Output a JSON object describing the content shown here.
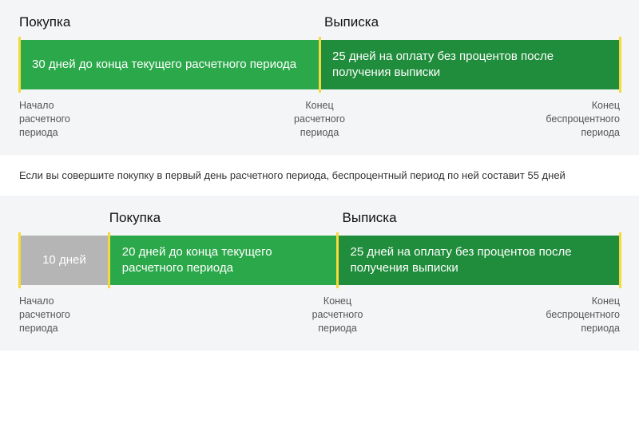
{
  "colors": {
    "green": "#2ba84a",
    "green_dark": "#1f8d3b",
    "grey": "#b5b5b5",
    "yellow": "#f8d93b",
    "panel_bg": "#f4f5f6",
    "text_dark": "#111",
    "text_mid": "#555"
  },
  "panel1": {
    "top_labels": {
      "purchase": "Покупка",
      "statement": "Выписка",
      "purchase_pos_pct": 0,
      "statement_pos_pct": 50
    },
    "segments": [
      {
        "width_pct": 50,
        "color": "#2ba84a",
        "text": "30 дней до конца текущего расчетного периода",
        "kind": "green"
      },
      {
        "width_pct": 50,
        "color": "#1f8d3b",
        "text": "25 дней на оплату без процентов после получения выписки",
        "kind": "green"
      }
    ],
    "ticks_pct": [
      0,
      50,
      100
    ],
    "bottom_labels": {
      "left": "Начало\nрасчетного\nпериода",
      "mid": "Конец\nрасчетного\nпериода",
      "mid_pos_pct": 50,
      "right": "Конец\nбеспроцентного\nпериода"
    }
  },
  "caption": "Если вы совершите покупку в первый день расчетного периода, беспроцентный период по ней составит 55 дней",
  "panel2": {
    "top_labels": {
      "purchase": "Покупка",
      "statement": "Выписка",
      "purchase_pos_pct": 15,
      "statement_pos_pct": 53
    },
    "segments": [
      {
        "width_pct": 15,
        "color": "#b5b5b5",
        "text": "10 дней",
        "kind": "grey"
      },
      {
        "width_pct": 38,
        "color": "#2ba84a",
        "text": "20 дней до конца текущего расчетного периода",
        "kind": "green"
      },
      {
        "width_pct": 47,
        "color": "#1f8d3b",
        "text": "25 дней на оплату без процентов после получения выписки",
        "kind": "green"
      }
    ],
    "ticks_pct": [
      0,
      15,
      53,
      100
    ],
    "bottom_labels": {
      "left": "Начало\nрасчетного\nпериода",
      "mid": "Конец\nрасчетного\nпериода",
      "mid_pos_pct": 53,
      "right": "Конец\nбеспроцентного\nпериода"
    }
  },
  "typography": {
    "top_label_fontsize": 17,
    "segment_fontsize": 15,
    "bottom_label_fontsize": 12.5,
    "caption_fontsize": 13
  }
}
